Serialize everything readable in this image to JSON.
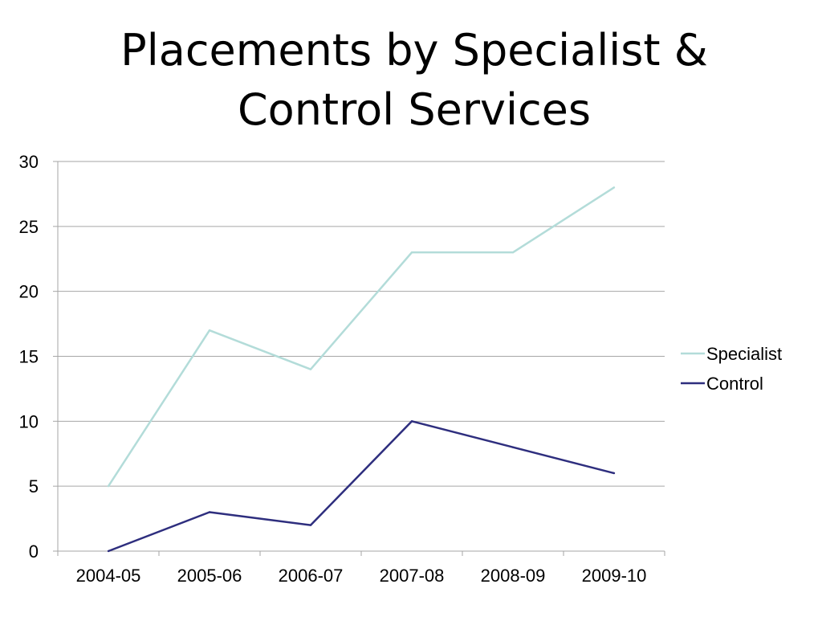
{
  "slide": {
    "title": "Placements by Specialist & Control Services"
  },
  "chart_data": {
    "type": "line",
    "title": "Placements by Specialist & Control Services",
    "xlabel": "",
    "ylabel": "",
    "categories": [
      "2004-05",
      "2005-06",
      "2006-07",
      "2007-08",
      "2008-09",
      "2009-10"
    ],
    "series": [
      {
        "name": "Specialist",
        "color": "#b3dcd9",
        "values": [
          5,
          17,
          14,
          23,
          23,
          28
        ]
      },
      {
        "name": "Control",
        "color": "#2e2e7e",
        "values": [
          0,
          3,
          2,
          10,
          8,
          6
        ]
      }
    ],
    "ylim": [
      0,
      30
    ],
    "yticks": [
      0,
      5,
      10,
      15,
      20,
      25,
      30
    ],
    "grid": true,
    "legend_position": "right",
    "gridline_color": "#a6a6a6",
    "axis_color": "#a6a6a6"
  }
}
